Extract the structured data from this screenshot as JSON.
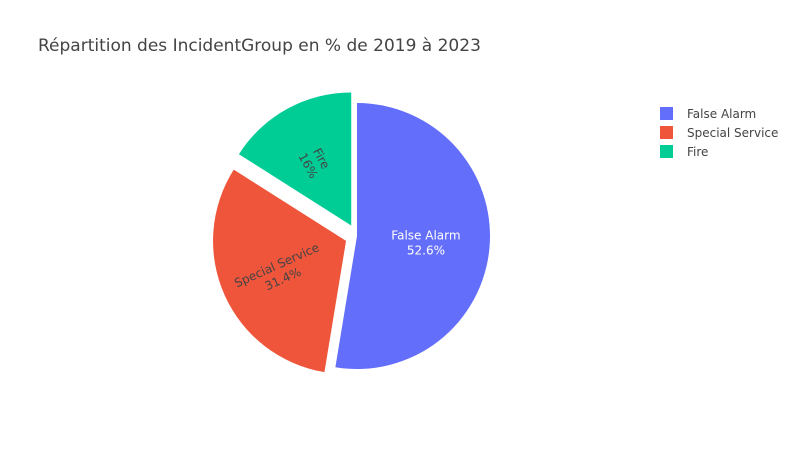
{
  "chart_data": {
    "type": "pie",
    "title": "Répartition des IncidentGroup en % de 2019 à 2023",
    "labels": [
      "False Alarm",
      "Special Service",
      "Fire"
    ],
    "values": [
      52.6,
      31.4,
      16.0
    ],
    "percent_text": [
      "52.6%",
      "31.4%",
      "16%"
    ],
    "colors": [
      "#636efa",
      "#ef553b",
      "#00cc96"
    ],
    "label_colors": [
      "#ffffff",
      "#444444",
      "#444444"
    ],
    "pulled": [
      false,
      true,
      true
    ],
    "legend": {
      "placement": "top-right",
      "items": [
        "False Alarm",
        "Special Service",
        "Fire"
      ]
    }
  }
}
